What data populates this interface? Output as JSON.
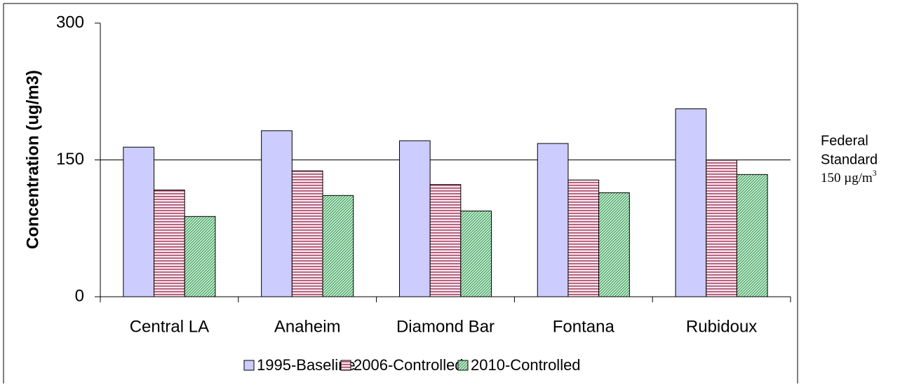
{
  "chart_data": {
    "type": "bar",
    "y_label": "Concentration (ug/m3)",
    "categories": [
      "Central LA",
      "Anaheim",
      "Diamond Bar",
      "Fontana",
      "Rubidoux"
    ],
    "series": [
      {
        "name": "1995-Baseline",
        "color": "#ccccff",
        "pattern": "solid",
        "values": [
          164,
          182,
          171,
          168,
          206
        ]
      },
      {
        "name": "2006-Controlled",
        "color": "#993366",
        "pattern": "horizontal",
        "values": [
          117,
          138,
          123,
          128,
          150
        ]
      },
      {
        "name": "2010-Controlled",
        "color": "#339966",
        "pattern": "diagonal",
        "values": [
          88,
          111,
          94,
          114,
          134
        ]
      }
    ],
    "ylim": [
      0,
      300
    ],
    "yticks": [
      0,
      150,
      300
    ],
    "reference_line": 150,
    "annotation": [
      "Federal",
      "Standard",
      "150 µg/m",
      "3"
    ],
    "legend": "bottom"
  }
}
